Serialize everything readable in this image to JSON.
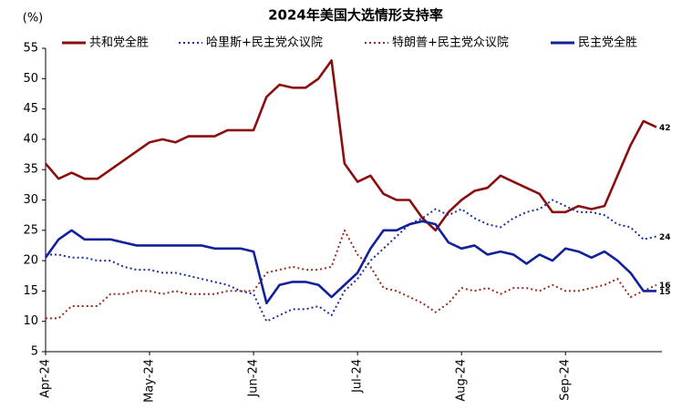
{
  "chart_data": {
    "type": "line",
    "title": "2024年美国大选情形支持率",
    "y_label": "(%)",
    "categories": [
      "Apr-24",
      null,
      null,
      null,
      null,
      null,
      null,
      null,
      "May-24",
      null,
      null,
      null,
      null,
      null,
      null,
      null,
      "Jun-24",
      null,
      null,
      null,
      null,
      null,
      null,
      null,
      "Jul-24",
      null,
      null,
      null,
      null,
      null,
      null,
      null,
      "Aug-24",
      null,
      null,
      null,
      null,
      null,
      null,
      null,
      "Sep-24",
      null,
      null,
      null,
      null,
      null,
      null,
      null
    ],
    "ylim": [
      5,
      55
    ],
    "yticks": [
      5,
      10,
      15,
      20,
      25,
      30,
      35,
      40,
      45,
      50,
      55
    ],
    "legend": "top",
    "grid": false,
    "end_labels": true,
    "series": [
      {
        "name": "共和党全胜",
        "color": "#8b0e0e",
        "line_style": "solid",
        "values": [
          36,
          33.5,
          34.5,
          33.5,
          33.5,
          35,
          36.5,
          38,
          39.5,
          40,
          39.5,
          40.5,
          40.5,
          40.5,
          41.5,
          41.5,
          41.5,
          47,
          49,
          48.5,
          48.5,
          50,
          53,
          36,
          33,
          34,
          31,
          30,
          30,
          27,
          25,
          28,
          30,
          31.5,
          32,
          34,
          33,
          32,
          31,
          28,
          28,
          29,
          28.5,
          29,
          34,
          39,
          43,
          42
        ]
      },
      {
        "name": "哈里斯+民主党众议院",
        "color": "#1a2fa0",
        "line_style": "dotted",
        "values": [
          21,
          21,
          20.5,
          20.5,
          20,
          20,
          19,
          18.5,
          18.5,
          18,
          18,
          17.5,
          17,
          16.5,
          16,
          15,
          14.5,
          10,
          11,
          12,
          12,
          12.5,
          11,
          15,
          17,
          20,
          22,
          24,
          26,
          27,
          28.5,
          27.5,
          28.5,
          27,
          26,
          25.5,
          27,
          28,
          28.5,
          30,
          29,
          28,
          28,
          27.5,
          26,
          25.5,
          23.5,
          24
        ]
      },
      {
        "name": "特朗普+民主党众议院",
        "color": "#9b2b1f",
        "line_style": "dotted",
        "values": [
          10.5,
          10.5,
          12.5,
          12.5,
          12.5,
          14.5,
          14.5,
          15,
          15,
          14.5,
          15,
          14.5,
          14.5,
          14.5,
          15,
          15,
          15,
          18,
          18.5,
          19,
          18.5,
          18.5,
          19,
          25,
          21,
          19,
          15.5,
          15,
          14,
          13,
          11.5,
          13,
          15.5,
          15,
          15.5,
          14.5,
          15.5,
          15.5,
          15,
          16,
          15,
          15,
          15.5,
          16,
          17,
          14,
          15,
          16
        ]
      },
      {
        "name": "民主党全胜",
        "color": "#10219a",
        "line_style": "solid",
        "values": [
          20.5,
          23.5,
          25,
          23.5,
          23.5,
          23.5,
          23,
          22.5,
          22.5,
          22.5,
          22.5,
          22.5,
          22.5,
          22,
          22,
          22,
          21.5,
          13,
          16,
          16.5,
          16.5,
          16,
          14,
          16,
          18,
          22,
          25,
          25,
          26,
          26.5,
          26,
          23,
          22,
          22.5,
          21,
          21.5,
          21,
          19.5,
          21,
          20,
          22,
          21.5,
          20.5,
          21.5,
          20,
          18,
          15,
          15
        ]
      }
    ]
  }
}
